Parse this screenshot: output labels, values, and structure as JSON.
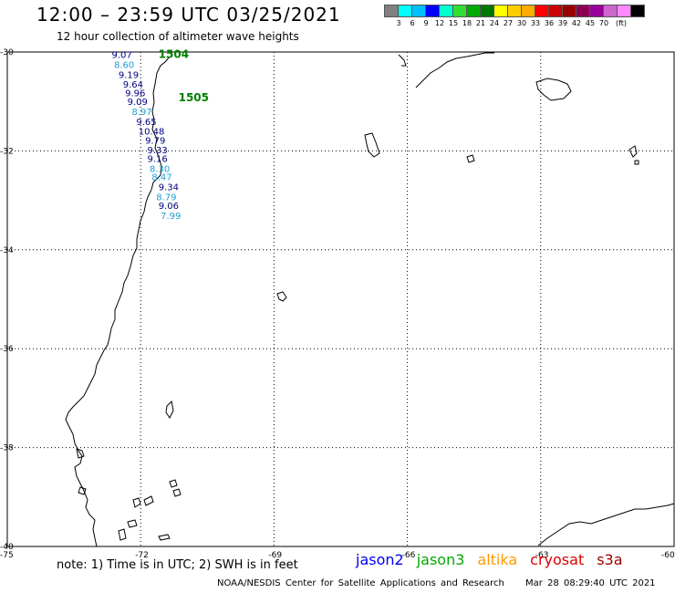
{
  "header": {
    "title": "12:00 – 23:59 UTC 03/25/2021",
    "subtitle": "12 hour collection of altimeter wave heights"
  },
  "colorbar": {
    "colors": [
      "#808080",
      "#00ffff",
      "#00bfff",
      "#0000ff",
      "#00ffcc",
      "#33dd33",
      "#00aa00",
      "#007700",
      "#ffff00",
      "#ffcc00",
      "#ffaa00",
      "#ff0000",
      "#cc0000",
      "#990000",
      "#8b0050",
      "#990099",
      "#cc66cc",
      "#ff88ff",
      "#000000"
    ],
    "labels": [
      "3",
      "6",
      "9",
      "12",
      "15",
      "18",
      "21",
      "24",
      "27",
      "30",
      "33",
      "36",
      "39",
      "42",
      "45",
      "70",
      "(ft)"
    ]
  },
  "map": {
    "lat_labels": [
      "-30",
      "-32",
      "-34",
      "-36",
      "-38",
      "-40"
    ],
    "lon_labels": [
      "-75",
      "-72",
      "-69",
      "-66",
      "-63",
      "-60"
    ],
    "lat_range": [
      -40,
      -30
    ],
    "lon_range": [
      -75,
      -60
    ]
  },
  "passes": [
    {
      "id": "1504",
      "lat": -30.05,
      "lon": -71.6,
      "color": "#008000"
    },
    {
      "id": "1505",
      "lat": -30.92,
      "lon": -71.15,
      "color": "#008000"
    }
  ],
  "measurements": [
    {
      "value": "9.07",
      "lat": -30.05,
      "lon": -72.65,
      "color": "#000080"
    },
    {
      "value": "8.60",
      "lat": -30.25,
      "lon": -72.6,
      "color": "#1ea0d8"
    },
    {
      "value": "9.19",
      "lat": -30.45,
      "lon": -72.5,
      "color": "#000080"
    },
    {
      "value": "9.64",
      "lat": -30.65,
      "lon": -72.4,
      "color": "#000080"
    },
    {
      "value": "9.96",
      "lat": -30.82,
      "lon": -72.35,
      "color": "#000080"
    },
    {
      "value": "9.09",
      "lat": -31.0,
      "lon": -72.3,
      "color": "#000080"
    },
    {
      "value": "8.97",
      "lat": -31.2,
      "lon": -72.2,
      "color": "#1ea0d8"
    },
    {
      "value": "9.65",
      "lat": -31.4,
      "lon": -72.1,
      "color": "#000080"
    },
    {
      "value": "10.48",
      "lat": -31.6,
      "lon": -72.05,
      "color": "#000080"
    },
    {
      "value": "9.79",
      "lat": -31.78,
      "lon": -71.9,
      "color": "#000080"
    },
    {
      "value": "9.33",
      "lat": -31.97,
      "lon": -71.85,
      "color": "#000080"
    },
    {
      "value": "9.16",
      "lat": -32.15,
      "lon": -71.85,
      "color": "#000080"
    },
    {
      "value": "8.30",
      "lat": -32.35,
      "lon": -71.8,
      "color": "#1ea0d8"
    },
    {
      "value": "8.47",
      "lat": -32.52,
      "lon": -71.75,
      "color": "#1ea0d8"
    },
    {
      "value": "9.34",
      "lat": -32.72,
      "lon": -71.6,
      "color": "#000080"
    },
    {
      "value": "8.79",
      "lat": -32.92,
      "lon": -71.65,
      "color": "#1ea0d8"
    },
    {
      "value": "9.06",
      "lat": -33.1,
      "lon": -71.6,
      "color": "#000080"
    },
    {
      "value": "7.99",
      "lat": -33.3,
      "lon": -71.55,
      "color": "#1ea0d8"
    }
  ],
  "note": "note:  1) Time is in UTC;  2) SWH is in feet",
  "satellites": [
    {
      "name": "jason2",
      "color": "#0000ee"
    },
    {
      "name": "jason3",
      "color": "#00aa00"
    },
    {
      "name": "altika",
      "color": "#ff9900"
    },
    {
      "name": "cryosat",
      "color": "#dd0000"
    },
    {
      "name": "s3a",
      "color": "#990000"
    }
  ],
  "footer": {
    "credit": "NOAA/NESDIS Center for Satellite Applications and Research",
    "timestamp": "Mar 28 08:29:40 UTC 2021"
  }
}
